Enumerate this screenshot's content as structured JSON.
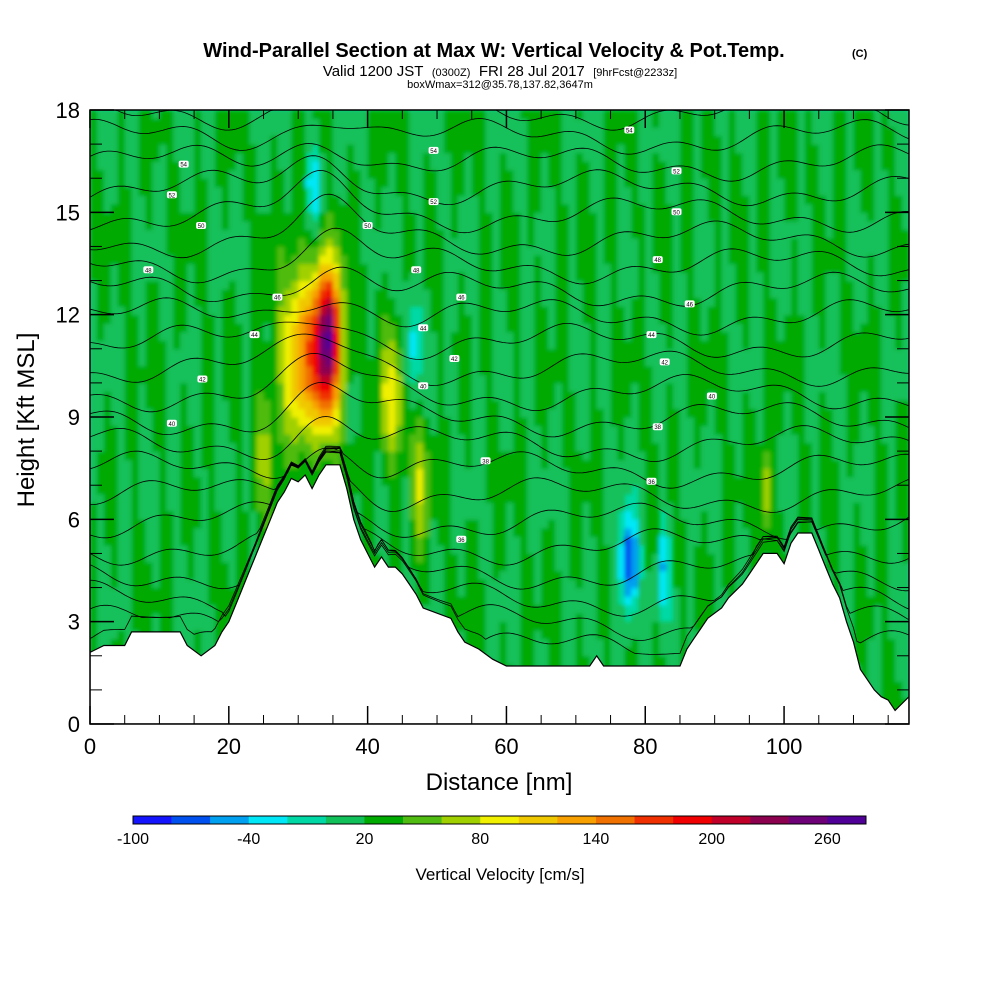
{
  "chart_data": {
    "type": "heatmap",
    "title": {
      "main": "Wind-Parallel Section at Max W: Vertical Velocity & Pot.Temp.",
      "copyright": "(C)",
      "valid_prefix": "Valid 1200 JST",
      "valid_utc": "(0300Z)",
      "valid_date": "FRI 28 Jul 2017",
      "forecast": "[9hrFcst@2233z]",
      "box": "boxWmax=312@35.78,137.82,3647m"
    },
    "xlabel": "Distance [nm]",
    "ylabel": "Height [Kft MSL]",
    "xlim": [
      0,
      118
    ],
    "ylim": [
      0,
      18
    ],
    "x_ticks": [
      "0",
      "20",
      "40",
      "60",
      "80",
      "100"
    ],
    "x_tick_values": [
      0,
      20,
      40,
      60,
      80,
      100
    ],
    "y_ticks": [
      "0",
      "3",
      "6",
      "9",
      "12",
      "15",
      "18"
    ],
    "y_tick_values": [
      0,
      3,
      6,
      9,
      12,
      15,
      18
    ],
    "terrain_kft": [
      [
        0,
        2.1
      ],
      [
        2,
        2.3
      ],
      [
        5,
        2.3
      ],
      [
        6,
        2.7
      ],
      [
        13,
        2.7
      ],
      [
        14,
        2.3
      ],
      [
        16,
        2.0
      ],
      [
        18,
        2.3
      ],
      [
        19,
        2.7
      ],
      [
        20,
        3.0
      ],
      [
        21,
        3.5
      ],
      [
        22,
        4.0
      ],
      [
        23,
        4.5
      ],
      [
        24,
        5.0
      ],
      [
        25,
        5.5
      ],
      [
        26,
        6.0
      ],
      [
        27,
        6.5
      ],
      [
        28,
        6.8
      ],
      [
        29,
        7.2
      ],
      [
        30,
        7.1
      ],
      [
        31,
        7.3
      ],
      [
        32,
        6.9
      ],
      [
        33,
        7.3
      ],
      [
        34,
        7.6
      ],
      [
        36,
        7.6
      ],
      [
        37,
        6.9
      ],
      [
        38,
        6.0
      ],
      [
        39,
        5.4
      ],
      [
        40,
        5.0
      ],
      [
        41,
        4.6
      ],
      [
        42,
        4.9
      ],
      [
        43,
        4.6
      ],
      [
        44,
        4.6
      ],
      [
        45,
        4.4
      ],
      [
        46,
        4.1
      ],
      [
        47,
        3.8
      ],
      [
        48,
        3.4
      ],
      [
        52,
        3.1
      ],
      [
        53,
        2.7
      ],
      [
        54,
        2.4
      ],
      [
        56,
        2.2
      ],
      [
        58,
        1.9
      ],
      [
        60,
        1.7
      ],
      [
        72,
        1.7
      ],
      [
        73,
        2.0
      ],
      [
        74,
        1.7
      ],
      [
        85,
        1.7
      ],
      [
        86,
        2.2
      ],
      [
        87,
        2.5
      ],
      [
        88,
        2.8
      ],
      [
        89,
        3.1
      ],
      [
        91,
        3.4
      ],
      [
        92,
        3.7
      ],
      [
        94,
        4.1
      ],
      [
        95,
        4.4
      ],
      [
        96,
        4.7
      ],
      [
        97,
        5.0
      ],
      [
        99,
        5.0
      ],
      [
        100,
        4.7
      ],
      [
        101,
        5.3
      ],
      [
        102,
        5.6
      ],
      [
        104,
        5.6
      ],
      [
        105,
        5.1
      ],
      [
        106,
        4.6
      ],
      [
        107,
        4.1
      ],
      [
        108,
        3.7
      ],
      [
        109,
        3.0
      ],
      [
        110,
        2.4
      ],
      [
        111,
        1.6
      ],
      [
        112,
        1.3
      ],
      [
        113,
        1.0
      ],
      [
        114,
        0.8
      ],
      [
        115,
        0.7
      ],
      [
        116,
        0.4
      ],
      [
        117,
        0.6
      ],
      [
        118,
        0.8
      ]
    ],
    "colorbar": {
      "title": "Vertical Velocity [cm/s]",
      "labels": [
        "-100",
        "-40",
        "20",
        "80",
        "140",
        "200",
        "260"
      ],
      "label_values": [
        -100,
        -40,
        20,
        80,
        140,
        200,
        260
      ],
      "min": -100,
      "max": 280,
      "step": 20,
      "colors": [
        "#1414ff",
        "#0050f0",
        "#00a0f0",
        "#00e8f8",
        "#00d9a5",
        "#12c05a",
        "#00aa00",
        "#50bb10",
        "#a0d000",
        "#f0f000",
        "#f0c800",
        "#f8a000",
        "#f07000",
        "#f03000",
        "#f00000",
        "#c00028",
        "#8c0050",
        "#6e0078",
        "#500096"
      ]
    },
    "updrafts": [
      {
        "x": 34.3,
        "y": 11.2,
        "w_cm_s": 240
      },
      {
        "x": 30.5,
        "y": 10.8,
        "w_cm_s": 130
      },
      {
        "x": 43.5,
        "y": 9.5,
        "w_cm_s": 90
      },
      {
        "x": 47.5,
        "y": 7.0,
        "w_cm_s": 70
      },
      {
        "x": 25.0,
        "y": 8.0,
        "w_cm_s": 60
      },
      {
        "x": 97.5,
        "y": 6.8,
        "w_cm_s": 80
      }
    ],
    "downdrafts": [
      {
        "x": 77.7,
        "y": 4.7,
        "w_cm_s": -90
      },
      {
        "x": 82.8,
        "y": 4.7,
        "w_cm_s": -40
      },
      {
        "x": 32.2,
        "y": 15.8,
        "w_cm_s": -40
      },
      {
        "x": 46.5,
        "y": 11.0,
        "w_cm_s": -30
      }
    ],
    "isentropes_note_labels": [
      "54",
      "52",
      "50",
      "48",
      "46",
      "44",
      "42",
      "40",
      "38",
      "36"
    ],
    "isentrope_labels": [
      {
        "x": 13.5,
        "y": 16.4,
        "text": "54"
      },
      {
        "x": 11.8,
        "y": 15.5,
        "text": "52"
      },
      {
        "x": 16.0,
        "y": 14.6,
        "text": "50"
      },
      {
        "x": 8.4,
        "y": 13.3,
        "text": "48"
      },
      {
        "x": 27.0,
        "y": 12.5,
        "text": "46"
      },
      {
        "x": 23.7,
        "y": 11.4,
        "text": "44"
      },
      {
        "x": 16.2,
        "y": 10.1,
        "text": "42"
      },
      {
        "x": 11.8,
        "y": 8.8,
        "text": "40"
      },
      {
        "x": 49.5,
        "y": 16.8,
        "text": "54"
      },
      {
        "x": 49.5,
        "y": 15.3,
        "text": "52"
      },
      {
        "x": 40.0,
        "y": 14.6,
        "text": "50"
      },
      {
        "x": 47.0,
        "y": 13.3,
        "text": "48"
      },
      {
        "x": 53.5,
        "y": 12.5,
        "text": "46"
      },
      {
        "x": 48.0,
        "y": 11.6,
        "text": "44"
      },
      {
        "x": 52.5,
        "y": 10.7,
        "text": "42"
      },
      {
        "x": 48.0,
        "y": 9.9,
        "text": "40"
      },
      {
        "x": 57.0,
        "y": 7.7,
        "text": "38"
      },
      {
        "x": 53.5,
        "y": 5.4,
        "text": "36"
      },
      {
        "x": 77.7,
        "y": 17.4,
        "text": "54"
      },
      {
        "x": 84.5,
        "y": 16.2,
        "text": "52"
      },
      {
        "x": 84.5,
        "y": 15.0,
        "text": "50"
      },
      {
        "x": 81.8,
        "y": 13.6,
        "text": "48"
      },
      {
        "x": 86.4,
        "y": 12.3,
        "text": "46"
      },
      {
        "x": 80.9,
        "y": 11.4,
        "text": "44"
      },
      {
        "x": 82.8,
        "y": 10.6,
        "text": "42"
      },
      {
        "x": 89.6,
        "y": 9.6,
        "text": "40"
      },
      {
        "x": 81.8,
        "y": 8.7,
        "text": "38"
      },
      {
        "x": 80.9,
        "y": 7.1,
        "text": "36"
      }
    ]
  }
}
